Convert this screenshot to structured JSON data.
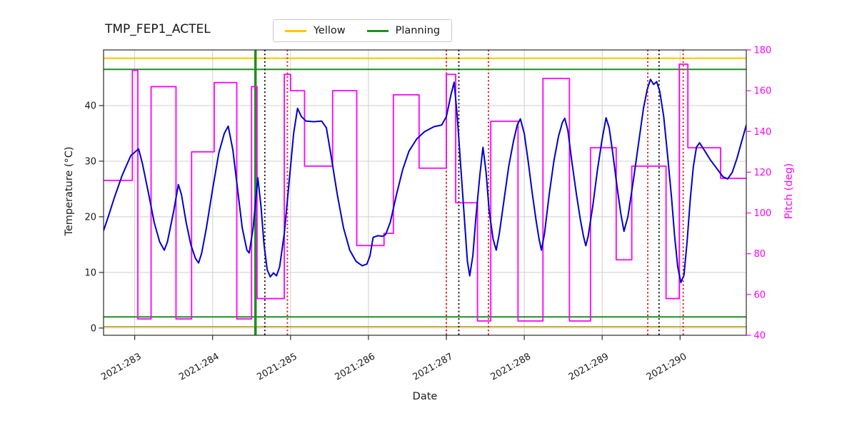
{
  "chart_data": {
    "type": "line",
    "title": "TMP_FEP1_ACTEL",
    "xlabel": "Date",
    "grid": true,
    "legend": [
      {
        "label": "Yellow",
        "color": "#ffc800"
      },
      {
        "label": "Planning",
        "color": "#1f8f1f"
      }
    ],
    "x_axis": {
      "lim": [
        282.6,
        290.85
      ],
      "tick_values": [
        283,
        284,
        285,
        286,
        287,
        288,
        289,
        290
      ],
      "tick_labels": [
        "2021:283",
        "2021:284",
        "2021:285",
        "2021:286",
        "2021:287",
        "2021:288",
        "2021:289",
        "2021:290"
      ]
    },
    "left_axis": {
      "label": "Temperature (°C)",
      "lim": [
        -1.3,
        50
      ],
      "ticks": [
        0,
        10,
        20,
        30,
        40
      ],
      "color": "#1a1a1a"
    },
    "right_axis": {
      "label": "Pitch (deg)",
      "lim": [
        40,
        180
      ],
      "ticks": [
        40,
        60,
        80,
        100,
        120,
        140,
        160,
        180
      ],
      "color": "#ff00ff"
    },
    "hlines": [
      {
        "name": "yellow-upper-limit",
        "y": 48.5,
        "color": "#ffc800",
        "width": 2.2
      },
      {
        "name": "planning-upper-limit",
        "y": 46.5,
        "color": "#1f8f1f",
        "width": 2
      },
      {
        "name": "planning-lower-limit",
        "y": 2.0,
        "color": "#1f8f1f",
        "width": 2
      },
      {
        "name": "yellow-lower-limit",
        "y": 0.25,
        "color": "#b8a212",
        "width": 1.6
      }
    ],
    "vlines": [
      {
        "name": "green-solid-marker",
        "x": 284.55,
        "color": "#1f8f1f",
        "width": 3.5,
        "style": "solid"
      },
      {
        "name": "black-dotted-marker-1",
        "x": 284.67,
        "color": "#000000",
        "width": 1.8,
        "style": "dotted"
      },
      {
        "name": "red-dotted-marker-1",
        "x": 284.96,
        "color": "#e00000",
        "width": 1.8,
        "style": "dotted"
      },
      {
        "name": "red-dotted-marker-2",
        "x": 287.0,
        "color": "#e00000",
        "width": 1.8,
        "style": "dotted"
      },
      {
        "name": "black-dotted-marker-2",
        "x": 287.16,
        "color": "#000000",
        "width": 1.8,
        "style": "dotted"
      },
      {
        "name": "red-dotted-marker-3",
        "x": 287.54,
        "color": "#e00000",
        "width": 1.8,
        "style": "dotted"
      },
      {
        "name": "red-dotted-marker-4",
        "x": 289.585,
        "color": "#e00000",
        "width": 1.8,
        "style": "dotted"
      },
      {
        "name": "black-dotted-marker-3",
        "x": 289.73,
        "color": "#000000",
        "width": 1.8,
        "style": "dotted"
      },
      {
        "name": "red-dotted-marker-5",
        "x": 290.04,
        "color": "#e00000",
        "width": 1.8,
        "style": "dotted"
      }
    ],
    "series": [
      {
        "name": "pitch",
        "axis": "right",
        "mode": "step",
        "color": "#ff00ff",
        "width": 1.8,
        "points": [
          [
            282.6,
            116
          ],
          [
            282.97,
            170
          ],
          [
            283.04,
            48
          ],
          [
            283.21,
            162
          ],
          [
            283.53,
            48
          ],
          [
            283.73,
            130
          ],
          [
            284.02,
            164
          ],
          [
            284.31,
            48
          ],
          [
            284.5,
            162
          ],
          [
            284.57,
            58
          ],
          [
            284.92,
            168
          ],
          [
            285.0,
            160
          ],
          [
            285.18,
            123
          ],
          [
            285.54,
            160
          ],
          [
            285.85,
            84
          ],
          [
            286.2,
            90
          ],
          [
            286.32,
            158
          ],
          [
            286.65,
            122
          ],
          [
            287.0,
            168
          ],
          [
            287.12,
            105
          ],
          [
            287.4,
            47
          ],
          [
            287.57,
            145
          ],
          [
            287.92,
            47
          ],
          [
            288.24,
            166
          ],
          [
            288.58,
            47
          ],
          [
            288.85,
            132
          ],
          [
            289.18,
            77
          ],
          [
            289.38,
            123
          ],
          [
            289.82,
            58
          ],
          [
            289.99,
            173
          ],
          [
            290.1,
            132
          ],
          [
            290.52,
            117
          ]
        ]
      },
      {
        "name": "temperature",
        "axis": "left",
        "mode": "line",
        "color": "#0000cd",
        "width": 2,
        "points": [
          [
            282.6,
            17.5
          ],
          [
            282.66,
            20
          ],
          [
            282.74,
            23.5
          ],
          [
            282.84,
            27.5
          ],
          [
            282.95,
            31
          ],
          [
            283.05,
            32.2
          ],
          [
            283.1,
            29.5
          ],
          [
            283.18,
            24
          ],
          [
            283.25,
            19
          ],
          [
            283.32,
            15.5
          ],
          [
            283.38,
            14
          ],
          [
            283.42,
            15.5
          ],
          [
            283.5,
            21
          ],
          [
            283.56,
            25.8
          ],
          [
            283.6,
            24
          ],
          [
            283.66,
            19
          ],
          [
            283.72,
            15
          ],
          [
            283.78,
            12.5
          ],
          [
            283.82,
            11.7
          ],
          [
            283.86,
            13.5
          ],
          [
            283.92,
            18
          ],
          [
            284.0,
            25
          ],
          [
            284.08,
            31.5
          ],
          [
            284.15,
            35
          ],
          [
            284.2,
            36.3
          ],
          [
            284.26,
            32
          ],
          [
            284.32,
            25
          ],
          [
            284.38,
            18
          ],
          [
            284.44,
            14
          ],
          [
            284.47,
            13.5
          ],
          [
            284.52,
            18
          ],
          [
            284.56,
            24
          ],
          [
            284.58,
            27
          ],
          [
            284.62,
            22
          ],
          [
            284.66,
            15
          ],
          [
            284.7,
            10.5
          ],
          [
            284.74,
            9.2
          ],
          [
            284.78,
            9.9
          ],
          [
            284.82,
            9.4
          ],
          [
            284.86,
            11
          ],
          [
            284.92,
            17
          ],
          [
            284.98,
            26
          ],
          [
            285.04,
            35
          ],
          [
            285.09,
            39.5
          ],
          [
            285.14,
            38
          ],
          [
            285.2,
            37.2
          ],
          [
            285.3,
            37.1
          ],
          [
            285.4,
            37.2
          ],
          [
            285.46,
            36
          ],
          [
            285.52,
            31
          ],
          [
            285.6,
            24
          ],
          [
            285.68,
            18
          ],
          [
            285.76,
            14
          ],
          [
            285.84,
            12
          ],
          [
            285.92,
            11.2
          ],
          [
            285.98,
            11.5
          ],
          [
            286.02,
            13
          ],
          [
            286.06,
            16.3
          ],
          [
            286.12,
            16.6
          ],
          [
            286.18,
            16.5
          ],
          [
            286.22,
            16.8
          ],
          [
            286.28,
            19
          ],
          [
            286.36,
            24
          ],
          [
            286.44,
            28.5
          ],
          [
            286.52,
            31.8
          ],
          [
            286.62,
            34
          ],
          [
            286.72,
            35.3
          ],
          [
            286.84,
            36.2
          ],
          [
            286.94,
            36.5
          ],
          [
            287.0,
            38
          ],
          [
            287.06,
            42
          ],
          [
            287.1,
            44.2
          ],
          [
            287.14,
            38
          ],
          [
            287.18,
            30
          ],
          [
            287.23,
            20
          ],
          [
            287.27,
            12
          ],
          [
            287.3,
            9.4
          ],
          [
            287.34,
            13
          ],
          [
            287.38,
            20
          ],
          [
            287.43,
            27.5
          ],
          [
            287.47,
            32.5
          ],
          [
            287.51,
            28
          ],
          [
            287.55,
            21
          ],
          [
            287.6,
            16
          ],
          [
            287.64,
            14
          ],
          [
            287.68,
            17
          ],
          [
            287.74,
            23
          ],
          [
            287.8,
            29
          ],
          [
            287.86,
            33.5
          ],
          [
            287.91,
            36.5
          ],
          [
            287.95,
            37.6
          ],
          [
            288.0,
            35
          ],
          [
            288.05,
            30
          ],
          [
            288.1,
            24.5
          ],
          [
            288.15,
            19.5
          ],
          [
            288.19,
            16
          ],
          [
            288.22,
            14
          ],
          [
            288.26,
            17
          ],
          [
            288.32,
            24
          ],
          [
            288.38,
            30
          ],
          [
            288.44,
            34.5
          ],
          [
            288.49,
            37
          ],
          [
            288.52,
            37.7
          ],
          [
            288.56,
            35.5
          ],
          [
            288.61,
            30
          ],
          [
            288.67,
            24
          ],
          [
            288.72,
            19.5
          ],
          [
            288.76,
            16.5
          ],
          [
            288.79,
            14.8
          ],
          [
            288.82,
            16.5
          ],
          [
            288.88,
            22
          ],
          [
            288.94,
            28.5
          ],
          [
            289.0,
            34
          ],
          [
            289.05,
            37.8
          ],
          [
            289.09,
            36
          ],
          [
            289.14,
            31
          ],
          [
            289.19,
            25.5
          ],
          [
            289.24,
            20.5
          ],
          [
            289.28,
            17.4
          ],
          [
            289.33,
            20
          ],
          [
            289.4,
            26.5
          ],
          [
            289.47,
            33.5
          ],
          [
            289.53,
            39.5
          ],
          [
            289.58,
            43
          ],
          [
            289.62,
            44.7
          ],
          [
            289.66,
            43.8
          ],
          [
            289.7,
            44.3
          ],
          [
            289.74,
            42.5
          ],
          [
            289.79,
            38
          ],
          [
            289.84,
            31
          ],
          [
            289.89,
            23.5
          ],
          [
            289.93,
            16.5
          ],
          [
            289.97,
            11
          ],
          [
            290.01,
            8.2
          ],
          [
            290.05,
            9.5
          ],
          [
            290.09,
            15.5
          ],
          [
            290.13,
            23
          ],
          [
            290.17,
            29
          ],
          [
            290.21,
            32.5
          ],
          [
            290.25,
            33.3
          ],
          [
            290.31,
            32
          ],
          [
            290.39,
            30.2
          ],
          [
            290.47,
            28.7
          ],
          [
            290.55,
            27.2
          ],
          [
            290.61,
            26.8
          ],
          [
            290.67,
            28
          ],
          [
            290.73,
            30.5
          ],
          [
            290.79,
            33.5
          ],
          [
            290.85,
            36.5
          ]
        ]
      }
    ]
  }
}
